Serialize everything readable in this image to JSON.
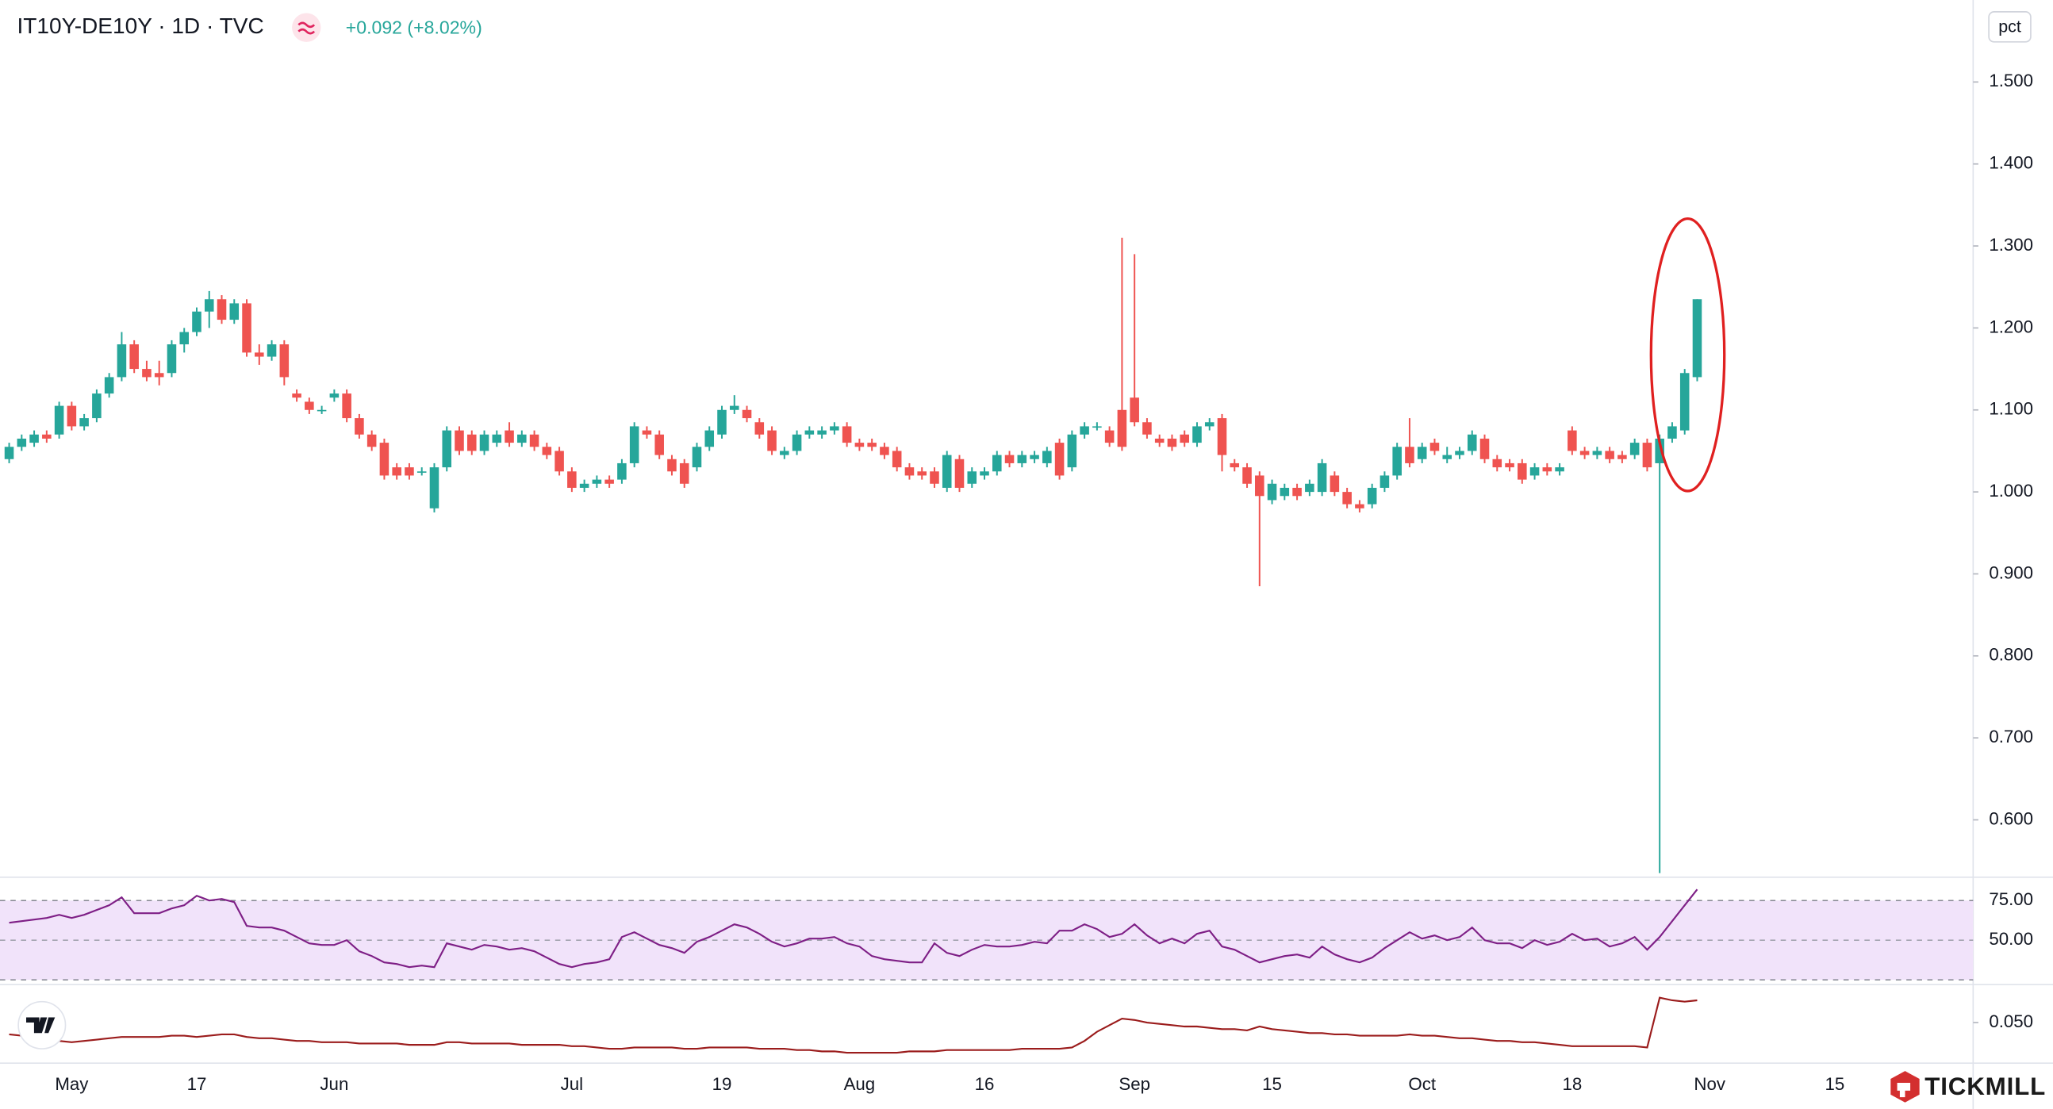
{
  "chart_data": {
    "type": "candlestick",
    "title": "IT10Y-DE10Y · 1D · TVC",
    "change": "+0.092 (+8.02%)",
    "unit": "pct",
    "up_color": "#26a69a",
    "down_color": "#ef5350",
    "ylim": [
      0.53,
      1.6
    ],
    "yticks": [
      {
        "value": 0.6,
        "label": "0.600"
      },
      {
        "value": 0.7,
        "label": "0.700"
      },
      {
        "value": 0.8,
        "label": "0.800"
      },
      {
        "value": 0.9,
        "label": "0.900"
      },
      {
        "value": 1.0,
        "label": "1.000"
      },
      {
        "value": 1.1,
        "label": "1.100"
      },
      {
        "value": 1.2,
        "label": "1.200"
      },
      {
        "value": 1.3,
        "label": "1.300"
      },
      {
        "value": 1.4,
        "label": "1.400"
      },
      {
        "value": 1.5,
        "label": "1.500"
      }
    ],
    "categories": [
      null,
      null,
      null,
      null,
      null,
      "May",
      null,
      null,
      null,
      null,
      null,
      null,
      null,
      null,
      null,
      "17",
      null,
      null,
      null,
      null,
      null,
      null,
      null,
      null,
      null,
      null,
      "Jun",
      null,
      null,
      null,
      null,
      null,
      null,
      null,
      null,
      null,
      null,
      null,
      null,
      null,
      null,
      null,
      null,
      null,
      null,
      "Jul",
      null,
      null,
      null,
      null,
      null,
      null,
      null,
      null,
      null,
      null,
      null,
      "19",
      null,
      null,
      null,
      null,
      null,
      null,
      null,
      null,
      null,
      null,
      "Aug",
      null,
      null,
      null,
      null,
      null,
      null,
      null,
      null,
      null,
      "16",
      null,
      null,
      null,
      null,
      null,
      null,
      null,
      null,
      null,
      null,
      null,
      "Sep",
      null,
      null,
      null,
      null,
      null,
      null,
      null,
      null,
      null,
      null,
      "15",
      null,
      null,
      null,
      null,
      null,
      null,
      null,
      null,
      null,
      null,
      null,
      "Oct",
      null,
      null,
      null,
      null,
      null,
      null,
      null,
      null,
      null,
      null,
      null,
      "18",
      null,
      null,
      null,
      null,
      null,
      null,
      null,
      null,
      null,
      null,
      "Nov",
      null,
      null,
      null,
      null,
      null,
      null,
      null,
      null,
      null,
      "15"
    ],
    "ohlc": [
      [
        1.04,
        1.06,
        1.035,
        1.055
      ],
      [
        1.055,
        1.07,
        1.05,
        1.065
      ],
      [
        1.06,
        1.075,
        1.055,
        1.07
      ],
      [
        1.07,
        1.075,
        1.06,
        1.065
      ],
      [
        1.07,
        1.11,
        1.065,
        1.105
      ],
      [
        1.105,
        1.11,
        1.075,
        1.08
      ],
      [
        1.08,
        1.095,
        1.075,
        1.09
      ],
      [
        1.09,
        1.125,
        1.085,
        1.12
      ],
      [
        1.12,
        1.145,
        1.115,
        1.14
      ],
      [
        1.14,
        1.195,
        1.135,
        1.18
      ],
      [
        1.18,
        1.185,
        1.145,
        1.15
      ],
      [
        1.15,
        1.16,
        1.135,
        1.14
      ],
      [
        1.145,
        1.16,
        1.13,
        1.14
      ],
      [
        1.145,
        1.185,
        1.14,
        1.18
      ],
      [
        1.18,
        1.2,
        1.17,
        1.195
      ],
      [
        1.195,
        1.225,
        1.19,
        1.22
      ],
      [
        1.22,
        1.245,
        1.2,
        1.235
      ],
      [
        1.235,
        1.24,
        1.205,
        1.21
      ],
      [
        1.21,
        1.235,
        1.205,
        1.23
      ],
      [
        1.23,
        1.235,
        1.165,
        1.17
      ],
      [
        1.17,
        1.18,
        1.155,
        1.165
      ],
      [
        1.165,
        1.185,
        1.16,
        1.18
      ],
      [
        1.18,
        1.185,
        1.13,
        1.14
      ],
      [
        1.12,
        1.125,
        1.11,
        1.115
      ],
      [
        1.11,
        1.115,
        1.095,
        1.1
      ],
      [
        1.1,
        1.105,
        1.095,
        1.1
      ],
      [
        1.115,
        1.125,
        1.11,
        1.12
      ],
      [
        1.12,
        1.125,
        1.085,
        1.09
      ],
      [
        1.09,
        1.095,
        1.065,
        1.07
      ],
      [
        1.07,
        1.075,
        1.05,
        1.055
      ],
      [
        1.06,
        1.065,
        1.015,
        1.02
      ],
      [
        1.03,
        1.035,
        1.015,
        1.02
      ],
      [
        1.03,
        1.035,
        1.015,
        1.02
      ],
      [
        1.025,
        1.03,
        1.02,
        1.025
      ],
      [
        0.98,
        1.035,
        0.975,
        1.03
      ],
      [
        1.03,
        1.08,
        1.025,
        1.075
      ],
      [
        1.075,
        1.08,
        1.045,
        1.05
      ],
      [
        1.07,
        1.075,
        1.045,
        1.05
      ],
      [
        1.05,
        1.075,
        1.045,
        1.07
      ],
      [
        1.06,
        1.075,
        1.055,
        1.07
      ],
      [
        1.075,
        1.085,
        1.055,
        1.06
      ],
      [
        1.06,
        1.075,
        1.055,
        1.07
      ],
      [
        1.07,
        1.075,
        1.05,
        1.055
      ],
      [
        1.055,
        1.06,
        1.04,
        1.045
      ],
      [
        1.05,
        1.055,
        1.02,
        1.025
      ],
      [
        1.025,
        1.03,
        1.0,
        1.005
      ],
      [
        1.005,
        1.015,
        1.0,
        1.01
      ],
      [
        1.01,
        1.02,
        1.005,
        1.015
      ],
      [
        1.015,
        1.02,
        1.005,
        1.01
      ],
      [
        1.015,
        1.04,
        1.01,
        1.035
      ],
      [
        1.035,
        1.085,
        1.03,
        1.08
      ],
      [
        1.075,
        1.08,
        1.065,
        1.07
      ],
      [
        1.07,
        1.075,
        1.04,
        1.045
      ],
      [
        1.04,
        1.045,
        1.02,
        1.025
      ],
      [
        1.035,
        1.04,
        1.005,
        1.01
      ],
      [
        1.03,
        1.06,
        1.025,
        1.055
      ],
      [
        1.055,
        1.08,
        1.05,
        1.075
      ],
      [
        1.07,
        1.105,
        1.065,
        1.1
      ],
      [
        1.1,
        1.118,
        1.095,
        1.105
      ],
      [
        1.1,
        1.105,
        1.085,
        1.09
      ],
      [
        1.085,
        1.09,
        1.065,
        1.07
      ],
      [
        1.075,
        1.08,
        1.045,
        1.05
      ],
      [
        1.045,
        1.055,
        1.04,
        1.05
      ],
      [
        1.05,
        1.075,
        1.045,
        1.07
      ],
      [
        1.07,
        1.08,
        1.065,
        1.075
      ],
      [
        1.07,
        1.08,
        1.065,
        1.075
      ],
      [
        1.075,
        1.085,
        1.07,
        1.08
      ],
      [
        1.08,
        1.085,
        1.055,
        1.06
      ],
      [
        1.06,
        1.065,
        1.05,
        1.055
      ],
      [
        1.06,
        1.065,
        1.05,
        1.055
      ],
      [
        1.055,
        1.06,
        1.04,
        1.045
      ],
      [
        1.05,
        1.055,
        1.025,
        1.03
      ],
      [
        1.03,
        1.035,
        1.015,
        1.02
      ],
      [
        1.025,
        1.03,
        1.015,
        1.02
      ],
      [
        1.025,
        1.03,
        1.005,
        1.01
      ],
      [
        1.005,
        1.05,
        1.0,
        1.045
      ],
      [
        1.04,
        1.045,
        1.0,
        1.005
      ],
      [
        1.01,
        1.03,
        1.005,
        1.025
      ],
      [
        1.02,
        1.03,
        1.015,
        1.025
      ],
      [
        1.025,
        1.05,
        1.02,
        1.045
      ],
      [
        1.045,
        1.05,
        1.03,
        1.035
      ],
      [
        1.035,
        1.05,
        1.03,
        1.045
      ],
      [
        1.04,
        1.05,
        1.035,
        1.045
      ],
      [
        1.035,
        1.055,
        1.03,
        1.05
      ],
      [
        1.06,
        1.065,
        1.015,
        1.02
      ],
      [
        1.03,
        1.075,
        1.025,
        1.07
      ],
      [
        1.07,
        1.085,
        1.065,
        1.08
      ],
      [
        1.08,
        1.085,
        1.075,
        1.08
      ],
      [
        1.075,
        1.08,
        1.055,
        1.06
      ],
      [
        1.1,
        1.31,
        1.05,
        1.055
      ],
      [
        1.115,
        1.29,
        1.08,
        1.085
      ],
      [
        1.085,
        1.09,
        1.065,
        1.07
      ],
      [
        1.065,
        1.07,
        1.055,
        1.06
      ],
      [
        1.065,
        1.07,
        1.05,
        1.055
      ],
      [
        1.07,
        1.075,
        1.055,
        1.06
      ],
      [
        1.06,
        1.085,
        1.055,
        1.08
      ],
      [
        1.08,
        1.09,
        1.075,
        1.085
      ],
      [
        1.09,
        1.095,
        1.025,
        1.045
      ],
      [
        1.035,
        1.04,
        1.025,
        1.03
      ],
      [
        1.03,
        1.035,
        1.005,
        1.01
      ],
      [
        1.02,
        1.025,
        0.885,
        0.995
      ],
      [
        0.99,
        1.015,
        0.985,
        1.01
      ],
      [
        0.995,
        1.01,
        0.99,
        1.005
      ],
      [
        1.005,
        1.01,
        0.99,
        0.995
      ],
      [
        1.0,
        1.015,
        0.995,
        1.01
      ],
      [
        1.0,
        1.04,
        0.995,
        1.035
      ],
      [
        1.02,
        1.025,
        0.995,
        1.0
      ],
      [
        1.0,
        1.005,
        0.98,
        0.985
      ],
      [
        0.985,
        0.99,
        0.975,
        0.98
      ],
      [
        0.985,
        1.01,
        0.98,
        1.005
      ],
      [
        1.005,
        1.025,
        1.0,
        1.02
      ],
      [
        1.02,
        1.06,
        1.015,
        1.055
      ],
      [
        1.055,
        1.09,
        1.03,
        1.035
      ],
      [
        1.04,
        1.06,
        1.035,
        1.055
      ],
      [
        1.06,
        1.065,
        1.045,
        1.05
      ],
      [
        1.04,
        1.055,
        1.035,
        1.045
      ],
      [
        1.045,
        1.055,
        1.04,
        1.05
      ],
      [
        1.05,
        1.075,
        1.045,
        1.07
      ],
      [
        1.065,
        1.07,
        1.035,
        1.04
      ],
      [
        1.04,
        1.045,
        1.025,
        1.03
      ],
      [
        1.035,
        1.04,
        1.025,
        1.03
      ],
      [
        1.035,
        1.04,
        1.01,
        1.015
      ],
      [
        1.02,
        1.035,
        1.015,
        1.03
      ],
      [
        1.03,
        1.035,
        1.02,
        1.025
      ],
      [
        1.025,
        1.035,
        1.02,
        1.03
      ],
      [
        1.075,
        1.08,
        1.045,
        1.05
      ],
      [
        1.05,
        1.055,
        1.04,
        1.045
      ],
      [
        1.045,
        1.055,
        1.04,
        1.05
      ],
      [
        1.05,
        1.055,
        1.035,
        1.04
      ],
      [
        1.045,
        1.05,
        1.035,
        1.04
      ],
      [
        1.045,
        1.065,
        1.04,
        1.06
      ],
      [
        1.06,
        1.065,
        1.025,
        1.03
      ],
      [
        1.035,
        1.07,
        0.535,
        1.065
      ],
      [
        1.065,
        1.085,
        1.06,
        1.08
      ],
      [
        1.075,
        1.15,
        1.07,
        1.145
      ],
      [
        1.14,
        1.235,
        1.135,
        1.235
      ],
      null,
      null,
      null,
      null,
      null,
      null,
      null,
      null,
      null,
      null,
      null
    ],
    "rsi": {
      "color": "#7e1f86",
      "band_color": "#f1e3fa",
      "ylim": [
        22,
        88
      ],
      "yticks": [
        {
          "value": 75,
          "label": "75.00"
        },
        {
          "value": 50,
          "label": "50.00"
        }
      ],
      "band": [
        25,
        75
      ],
      "values": [
        61,
        62,
        63,
        64,
        66,
        64,
        66,
        69,
        72,
        77,
        67,
        67,
        67,
        70,
        72,
        78,
        75,
        76,
        74,
        59,
        58,
        58,
        56,
        52,
        48,
        47,
        47,
        50,
        43,
        40,
        36,
        35,
        33,
        34,
        33,
        48,
        46,
        44,
        47,
        46,
        44,
        45,
        43,
        39,
        35,
        33,
        35,
        36,
        38,
        52,
        55,
        51,
        47,
        45,
        42,
        49,
        52,
        56,
        60,
        58,
        54,
        49,
        46,
        48,
        51,
        51,
        52,
        48,
        46,
        40,
        38,
        37,
        36,
        36,
        48,
        42,
        40,
        44,
        47,
        46,
        46,
        47,
        49,
        48,
        56,
        56,
        60,
        57,
        52,
        54,
        60,
        53,
        48,
        51,
        48,
        54,
        56,
        46,
        44,
        40,
        36,
        38,
        40,
        41,
        39,
        46,
        41,
        38,
        36,
        39,
        45,
        50,
        55,
        51,
        53,
        50,
        52,
        58,
        50,
        48,
        48,
        45,
        50,
        47,
        49,
        54,
        50,
        51,
        46,
        48,
        52,
        44,
        52,
        62,
        72,
        82,
        null,
        null,
        null,
        null,
        null,
        null,
        null,
        null,
        null,
        null,
        null
      ]
    },
    "indicator": {
      "color": "#9b1c1c",
      "ylim": [
        0.021,
        0.074
      ],
      "yticks": [
        {
          "value": 0.05,
          "label": "0.050"
        }
      ],
      "values": [
        0.041,
        0.04,
        0.039,
        0.037,
        0.036,
        0.035,
        0.036,
        0.037,
        0.038,
        0.039,
        0.039,
        0.039,
        0.039,
        0.04,
        0.04,
        0.039,
        0.04,
        0.041,
        0.041,
        0.039,
        0.038,
        0.038,
        0.037,
        0.036,
        0.036,
        0.035,
        0.035,
        0.035,
        0.034,
        0.034,
        0.034,
        0.034,
        0.033,
        0.033,
        0.033,
        0.035,
        0.035,
        0.034,
        0.034,
        0.034,
        0.034,
        0.033,
        0.033,
        0.033,
        0.033,
        0.032,
        0.032,
        0.031,
        0.03,
        0.03,
        0.031,
        0.031,
        0.031,
        0.031,
        0.03,
        0.03,
        0.031,
        0.031,
        0.031,
        0.031,
        0.03,
        0.03,
        0.03,
        0.029,
        0.029,
        0.028,
        0.028,
        0.027,
        0.027,
        0.027,
        0.027,
        0.027,
        0.028,
        0.028,
        0.028,
        0.029,
        0.029,
        0.029,
        0.029,
        0.029,
        0.029,
        0.03,
        0.03,
        0.03,
        0.03,
        0.031,
        0.036,
        0.043,
        0.048,
        0.053,
        0.052,
        0.05,
        0.049,
        0.048,
        0.047,
        0.047,
        0.046,
        0.045,
        0.045,
        0.044,
        0.047,
        0.045,
        0.044,
        0.043,
        0.042,
        0.042,
        0.041,
        0.041,
        0.04,
        0.04,
        0.04,
        0.04,
        0.041,
        0.04,
        0.04,
        0.039,
        0.038,
        0.038,
        0.037,
        0.036,
        0.036,
        0.035,
        0.035,
        0.034,
        0.033,
        0.032,
        0.032,
        0.032,
        0.032,
        0.032,
        0.032,
        0.031,
        0.069,
        0.067,
        0.066,
        0.067,
        null,
        null,
        null,
        null,
        null,
        null,
        null,
        null,
        null,
        null,
        null
      ]
    }
  },
  "brand": "TICKMILL"
}
